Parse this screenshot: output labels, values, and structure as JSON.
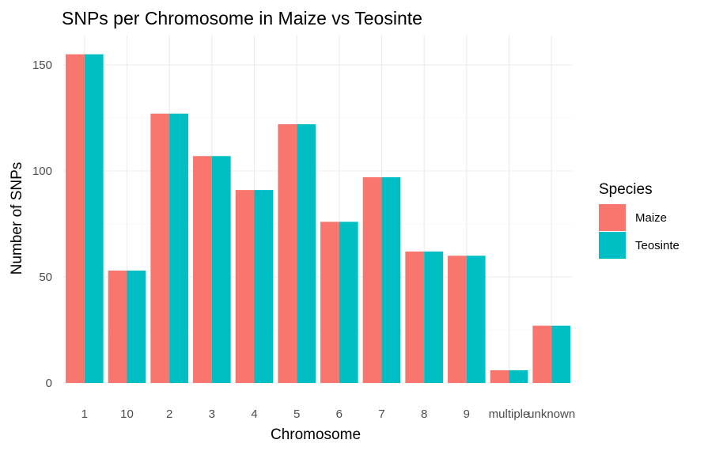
{
  "chart_data": {
    "type": "bar",
    "title": "SNPs per Chromosome in Maize vs Teosinte",
    "xlabel": "Chromosome",
    "ylabel": "Number of SNPs",
    "categories": [
      "1",
      "10",
      "2",
      "3",
      "4",
      "5",
      "6",
      "7",
      "8",
      "9",
      "multiple",
      "unknown"
    ],
    "series": [
      {
        "name": "Maize",
        "color": "#F8766D",
        "values": [
          155,
          53,
          127,
          107,
          91,
          122,
          76,
          97,
          62,
          60,
          6,
          27
        ]
      },
      {
        "name": "Teosinte",
        "color": "#00BFC4",
        "values": [
          155,
          53,
          127,
          107,
          91,
          122,
          76,
          97,
          62,
          60,
          6,
          27
        ]
      }
    ],
    "ylim": [
      0,
      165
    ],
    "yticks": [
      0,
      50,
      100,
      150
    ],
    "grid": true,
    "legend": {
      "title": "Species",
      "position": "right"
    }
  }
}
